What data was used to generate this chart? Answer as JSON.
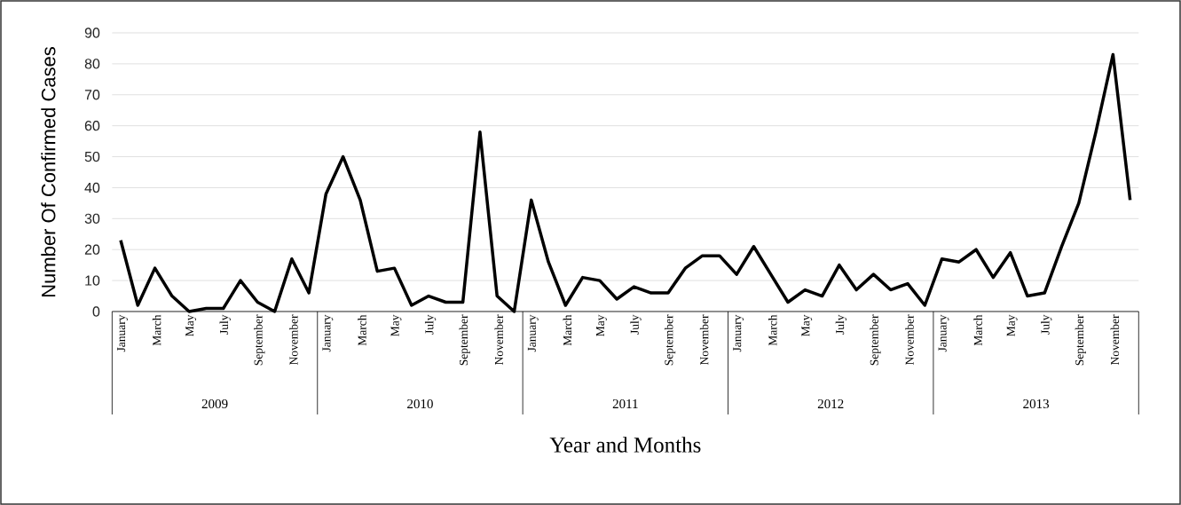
{
  "chart_data": {
    "type": "line",
    "xlabel": "Year and Months",
    "ylabel": "Number Of Confirmed Cases",
    "categories": [
      "January",
      null,
      "March",
      null,
      "May",
      null,
      "July",
      null,
      "September",
      null,
      "November",
      null,
      "January",
      null,
      "March",
      null,
      "May",
      null,
      "July",
      null,
      "September",
      null,
      "November",
      null,
      "January",
      null,
      "March",
      null,
      "May",
      null,
      "July",
      null,
      "September",
      null,
      "November",
      null,
      "January",
      null,
      "March",
      null,
      "May",
      null,
      "July",
      null,
      "September",
      null,
      "November",
      null,
      "January",
      null,
      "March",
      null,
      "May",
      null,
      "July",
      null,
      "September",
      null,
      "November",
      null
    ],
    "annotations": [
      "2009",
      "2010",
      "2011",
      "2012",
      "2013"
    ],
    "values": [
      23,
      2,
      14,
      5,
      0,
      1,
      1,
      10,
      3,
      0,
      17,
      6,
      38,
      50,
      36,
      13,
      14,
      2,
      5,
      3,
      3,
      58,
      5,
      0,
      36,
      16,
      2,
      11,
      10,
      4,
      8,
      6,
      6,
      14,
      18,
      18,
      12,
      21,
      12,
      3,
      7,
      5,
      15,
      7,
      12,
      7,
      9,
      2,
      17,
      16,
      20,
      11,
      19,
      5,
      6,
      21,
      35,
      58,
      83,
      36
    ],
    "color": "#000000",
    "ylim": [
      0,
      90
    ],
    "yticks": [
      0,
      10,
      20,
      30,
      40,
      50,
      60,
      70,
      80,
      90
    ],
    "grid": "y"
  }
}
